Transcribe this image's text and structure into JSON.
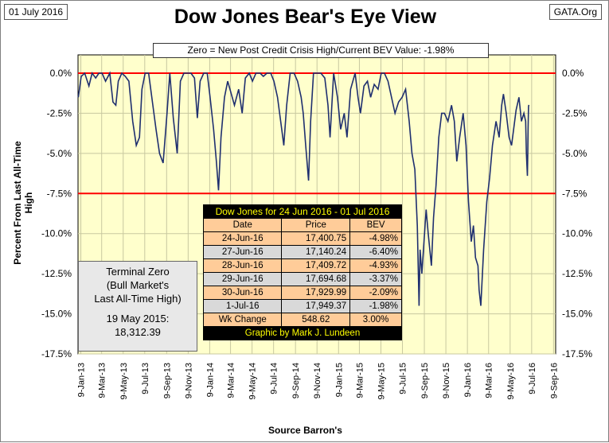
{
  "header": {
    "date": "01 July 2016",
    "source_tag": "GATA.Org"
  },
  "chart_data": {
    "type": "line",
    "title": "Dow Jones Bear's Eye View",
    "subtitle": "Zero = New Post Credit Crisis High/Current BEV Value:  -1.98%",
    "xlabel": "Source Barron's",
    "ylabel": "Percent From Last All-Time High",
    "x_range": [
      "2013-01-01",
      "2016-09-15"
    ],
    "ylim": [
      -17.5,
      0
    ],
    "y_ticks": [
      0,
      -2.5,
      -5,
      -7.5,
      -10,
      -12.5,
      -15,
      -17.5
    ],
    "y_tick_labels": [
      "0.0%",
      "-2.5%",
      "-5.0%",
      "-7.5%",
      "-10.0%",
      "-12.5%",
      "-15.0%",
      "-17.5%"
    ],
    "x_ticks": [
      "2013-01-09",
      "2013-03-09",
      "2013-05-09",
      "2013-07-09",
      "2013-09-09",
      "2013-11-09",
      "2014-01-09",
      "2014-03-09",
      "2014-05-09",
      "2014-07-09",
      "2014-09-09",
      "2014-11-09",
      "2015-01-09",
      "2015-03-09",
      "2015-05-09",
      "2015-07-09",
      "2015-09-09",
      "2015-11-09",
      "2016-01-09",
      "2016-03-09",
      "2016-05-09",
      "2016-07-09",
      "2016-09-09"
    ],
    "x_tick_labels": [
      "9-Jan-13",
      "9-Mar-13",
      "9-May-13",
      "9-Jul-13",
      "9-Sep-13",
      "9-Nov-13",
      "9-Jan-14",
      "9-Mar-14",
      "9-May-14",
      "9-Jul-14",
      "9-Sep-14",
      "9-Nov-14",
      "9-Jan-15",
      "9-Mar-15",
      "9-May-15",
      "9-Jul-15",
      "9-Sep-15",
      "9-Nov-15",
      "9-Jan-16",
      "9-Mar-16",
      "9-May-16",
      "9-Jul-16",
      "9-Sep-16"
    ],
    "grid": true,
    "reference_lines": [
      0,
      -7.5
    ],
    "colors": {
      "series": "#1f2f6f",
      "reference": "#ff0000",
      "plot_bg": "#ffffcc",
      "grid": "#c8c8a0"
    },
    "series": [
      {
        "x": [
          "2013-01-02",
          "2013-01-10",
          "2013-01-20",
          "2013-02-01",
          "2013-02-10",
          "2013-02-20",
          "2013-03-01",
          "2013-03-10",
          "2013-03-20",
          "2013-04-01",
          "2013-04-10",
          "2013-04-18",
          "2013-04-25",
          "2013-05-05",
          "2013-05-15",
          "2013-05-25",
          "2013-06-05",
          "2013-06-15",
          "2013-06-24",
          "2013-07-01",
          "2013-07-10",
          "2013-07-20",
          "2013-08-01",
          "2013-08-10",
          "2013-08-20",
          "2013-08-30",
          "2013-09-10",
          "2013-09-18",
          "2013-09-28",
          "2013-10-09",
          "2013-10-18",
          "2013-10-28",
          "2013-11-07",
          "2013-11-17",
          "2013-11-27",
          "2013-12-05",
          "2013-12-13",
          "2013-12-23",
          "2014-01-02",
          "2014-01-10",
          "2014-01-20",
          "2014-01-28",
          "2014-02-03",
          "2014-02-10",
          "2014-02-20",
          "2014-03-01",
          "2014-03-10",
          "2014-03-20",
          "2014-04-01",
          "2014-04-11",
          "2014-04-20",
          "2014-05-01",
          "2014-05-10",
          "2014-05-20",
          "2014-06-01",
          "2014-06-10",
          "2014-06-20",
          "2014-07-01",
          "2014-07-10",
          "2014-07-20",
          "2014-08-01",
          "2014-08-07",
          "2014-08-15",
          "2014-08-25",
          "2014-09-05",
          "2014-09-15",
          "2014-09-25",
          "2014-10-01",
          "2014-10-08",
          "2014-10-16",
          "2014-10-22",
          "2014-10-30",
          "2014-11-10",
          "2014-11-20",
          "2014-12-01",
          "2014-12-10",
          "2014-12-16",
          "2014-12-26",
          "2015-01-06",
          "2015-01-15",
          "2015-01-25",
          "2015-02-02",
          "2015-02-12",
          "2015-02-25",
          "2015-03-05",
          "2015-03-12",
          "2015-03-22",
          "2015-04-01",
          "2015-04-10",
          "2015-04-20",
          "2015-05-01",
          "2015-05-10",
          "2015-05-19",
          "2015-05-29",
          "2015-06-08",
          "2015-06-18",
          "2015-06-28",
          "2015-07-08",
          "2015-07-18",
          "2015-07-28",
          "2015-08-05",
          "2015-08-13",
          "2015-08-20",
          "2015-08-25",
          "2015-08-28",
          "2015-09-02",
          "2015-09-08",
          "2015-09-14",
          "2015-09-20",
          "2015-09-29",
          "2015-10-05",
          "2015-10-12",
          "2015-10-20",
          "2015-10-28",
          "2015-11-05",
          "2015-11-15",
          "2015-11-25",
          "2015-12-03",
          "2015-12-10",
          "2015-12-18",
          "2015-12-28",
          "2016-01-05",
          "2016-01-12",
          "2016-01-20",
          "2016-01-26",
          "2016-02-01",
          "2016-02-08",
          "2016-02-11",
          "2016-02-16",
          "2016-02-24",
          "2016-03-04",
          "2016-03-12",
          "2016-03-20",
          "2016-03-30",
          "2016-04-08",
          "2016-04-15",
          "2016-04-20",
          "2016-04-28",
          "2016-05-06",
          "2016-05-13",
          "2016-05-19",
          "2016-05-26",
          "2016-06-03",
          "2016-06-10",
          "2016-06-17",
          "2016-06-22",
          "2016-06-24",
          "2016-06-27",
          "2016-06-28",
          "2016-06-29",
          "2016-06-30",
          "2016-07-01"
        ],
        "values": [
          -1.5,
          -0.2,
          0,
          -0.8,
          0,
          -0.3,
          0,
          0,
          -0.5,
          0,
          -1.8,
          -2.0,
          -0.5,
          0,
          -0.2,
          -0.5,
          -3.0,
          -4.5,
          -4.0,
          -1.0,
          0,
          0,
          -2.0,
          -3.5,
          -5.0,
          -5.6,
          -2.5,
          0,
          -2.8,
          -5.0,
          -0.5,
          0,
          0,
          0,
          -0.3,
          -2.8,
          -0.5,
          0,
          0,
          -1.5,
          -3.5,
          -5.5,
          -7.3,
          -4.0,
          -1.5,
          -0.5,
          -1.2,
          -2.0,
          -1.0,
          -2.5,
          -0.3,
          0,
          -0.5,
          0,
          0,
          -0.2,
          0,
          0,
          -0.5,
          -1.5,
          -3.5,
          -4.5,
          -2.0,
          0,
          0,
          -0.5,
          -1.5,
          -2.5,
          -4.5,
          -6.7,
          -3.0,
          0,
          0,
          0,
          -0.3,
          -2.0,
          -4.0,
          0,
          -1.5,
          -3.5,
          -2.5,
          -4.0,
          -1.0,
          0,
          -1.5,
          -2.5,
          -0.8,
          -0.5,
          -1.5,
          -0.7,
          -1.0,
          0,
          0,
          -0.5,
          -1.5,
          -2.5,
          -1.8,
          -1.5,
          -1.0,
          -3.0,
          -5.0,
          -6.0,
          -9.5,
          -14.5,
          -11.0,
          -12.5,
          -10.5,
          -8.5,
          -10.0,
          -12.0,
          -9.0,
          -7.0,
          -4.0,
          -2.5,
          -2.5,
          -3.0,
          -2.0,
          -3.0,
          -5.5,
          -4.0,
          -2.5,
          -4.5,
          -8.0,
          -10.5,
          -9.5,
          -11.5,
          -12.0,
          -13.5,
          -14.5,
          -11.0,
          -8.0,
          -6.5,
          -4.5,
          -3.0,
          -4.0,
          -2.0,
          -1.3,
          -2.5,
          -4.0,
          -4.5,
          -3.5,
          -2.3,
          -1.5,
          -3.0,
          -2.5,
          -3.0,
          -4.98,
          -6.4,
          -4.93,
          -3.37,
          -2.09,
          -1.98
        ]
      }
    ]
  },
  "terminal_zero": {
    "line1": "Terminal Zero",
    "line2": "(Bull Market's",
    "line3": "Last All-Time High)",
    "date": "19 May 2015:",
    "value": "18,312.39"
  },
  "table": {
    "title": "Dow Jones for 24 Jun 2016 - 01 Jul 2016",
    "headers": [
      "Date",
      "Price",
      "BEV"
    ],
    "rows": [
      [
        "24-Jun-16",
        "17,400.75",
        "-4.98%"
      ],
      [
        "27-Jun-16",
        "17,140.24",
        "-6.40%"
      ],
      [
        "28-Jun-16",
        "17,409.72",
        "-4.93%"
      ],
      [
        "29-Jun-16",
        "17,694.68",
        "-3.37%"
      ],
      [
        "30-Jun-16",
        "17,929.99",
        "-2.09%"
      ],
      [
        "1-Jul-16",
        "17,949.37",
        "-1.98%"
      ]
    ],
    "wk_change": [
      "Wk Change",
      "548.62",
      "3.00%"
    ],
    "credit": "Graphic by Mark J. Lundeen"
  }
}
